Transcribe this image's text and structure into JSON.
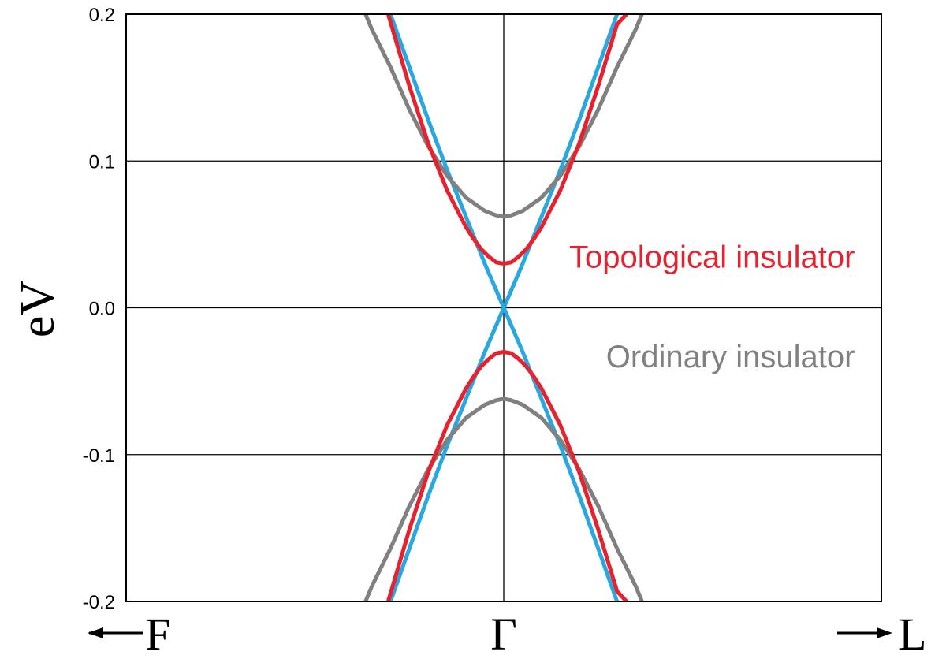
{
  "chart_data": {
    "type": "line",
    "ylabel": "eV",
    "ylim": [
      -0.2,
      0.2
    ],
    "yticks": [
      0.2,
      0.1,
      0.0,
      -0.1,
      -0.2
    ],
    "ytick_labels": [
      "0.2",
      "0.1",
      "0.0",
      "-0.1",
      "-0.2"
    ],
    "xlim": [
      -1,
      1
    ],
    "x_labels": {
      "left": "F",
      "center": "Γ",
      "right": "L"
    },
    "grid": true,
    "colors": {
      "topological": "#e8212f",
      "ordinary": "#808080",
      "gapless": "#29a8e0"
    },
    "series": [
      {
        "name": "Topological insulator",
        "color": "#e8212f",
        "bands": [
          {
            "x": [
              -0.306,
              -0.25,
              -0.2,
              -0.15,
              -0.1,
              -0.08,
              -0.06,
              -0.04,
              -0.02,
              0.0,
              0.02,
              0.04,
              0.06,
              0.08,
              0.1,
              0.15,
              0.2,
              0.25,
              0.3,
              0.325
            ],
            "y": [
              -0.2,
              -0.151,
              -0.112,
              -0.08,
              -0.055,
              -0.047,
              -0.04,
              -0.035,
              -0.031,
              -0.03,
              -0.031,
              -0.035,
              -0.04,
              -0.047,
              -0.055,
              -0.08,
              -0.112,
              -0.151,
              -0.193,
              -0.2
            ]
          },
          {
            "x": [
              -0.306,
              -0.25,
              -0.2,
              -0.15,
              -0.1,
              -0.08,
              -0.06,
              -0.04,
              -0.02,
              0.0,
              0.02,
              0.04,
              0.06,
              0.08,
              0.1,
              0.15,
              0.2,
              0.25,
              0.3,
              0.325
            ],
            "y": [
              0.2,
              0.151,
              0.112,
              0.08,
              0.055,
              0.047,
              0.04,
              0.035,
              0.031,
              0.03,
              0.031,
              0.035,
              0.04,
              0.047,
              0.055,
              0.08,
              0.112,
              0.151,
              0.193,
              0.2
            ]
          }
        ]
      },
      {
        "name": "Ordinary insulator",
        "color": "#808080",
        "bands": [
          {
            "x": [
              -0.366,
              -0.35,
              -0.3,
              -0.25,
              -0.2,
              -0.15,
              -0.1,
              -0.05,
              -0.02,
              0.0,
              0.02,
              0.05,
              0.1,
              0.15,
              0.2,
              0.25,
              0.3,
              0.35,
              0.366
            ],
            "y": [
              -0.2,
              -0.19,
              -0.164,
              -0.135,
              -0.11,
              -0.09,
              -0.075,
              -0.066,
              -0.063,
              -0.062,
              -0.063,
              -0.066,
              -0.075,
              -0.09,
              -0.11,
              -0.135,
              -0.164,
              -0.19,
              -0.2
            ]
          },
          {
            "x": [
              -0.366,
              -0.35,
              -0.3,
              -0.25,
              -0.2,
              -0.15,
              -0.1,
              -0.05,
              -0.02,
              0.0,
              0.02,
              0.05,
              0.1,
              0.15,
              0.2,
              0.25,
              0.3,
              0.35,
              0.366
            ],
            "y": [
              0.2,
              0.19,
              0.164,
              0.135,
              0.11,
              0.09,
              0.075,
              0.066,
              0.063,
              0.062,
              0.063,
              0.066,
              0.075,
              0.09,
              0.11,
              0.135,
              0.164,
              0.19,
              0.2
            ]
          }
        ]
      },
      {
        "name": "",
        "color": "#29a8e0",
        "bands": [
          {
            "x": [
              -0.3,
              -0.25,
              -0.2,
              -0.15,
              -0.1,
              -0.05,
              0.0,
              0.05,
              0.1,
              0.15,
              0.2,
              0.25,
              0.3
            ],
            "y": [
              -0.2,
              -0.164,
              -0.128,
              -0.094,
              -0.062,
              -0.03,
              0.0,
              -0.03,
              -0.062,
              -0.094,
              -0.128,
              -0.164,
              -0.2
            ]
          },
          {
            "x": [
              -0.3,
              -0.25,
              -0.2,
              -0.15,
              -0.1,
              -0.05,
              0.0,
              0.05,
              0.1,
              0.15,
              0.2,
              0.25,
              0.3
            ],
            "y": [
              0.2,
              0.164,
              0.128,
              0.094,
              0.062,
              0.03,
              0.0,
              0.03,
              0.062,
              0.094,
              0.128,
              0.164,
              0.2
            ]
          }
        ]
      }
    ],
    "annotations": [
      {
        "text": "Topological insulator",
        "x": 0.93,
        "y": 0.035,
        "color": "#e8212f"
      },
      {
        "text": "Ordinary insulator",
        "x": 0.93,
        "y": -0.033,
        "color": "#808080"
      }
    ]
  }
}
